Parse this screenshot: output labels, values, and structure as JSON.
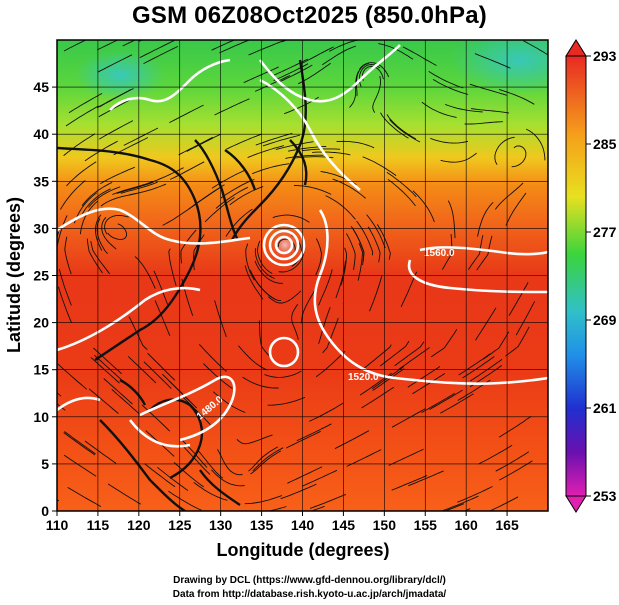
{
  "title": "GSM 06Z08Oct2025 (850.0hPa)",
  "xlabel": "Longitude (degrees)",
  "ylabel": "Latitude  (degrees)",
  "x_ticks": [
    "110",
    "115",
    "120",
    "125",
    "130",
    "135",
    "140",
    "145",
    "150",
    "155",
    "160",
    "165"
  ],
  "y_ticks": [
    "0",
    "5",
    "10",
    "15",
    "20",
    "25",
    "30",
    "35",
    "40",
    "45"
  ],
  "x_range": [
    110,
    170
  ],
  "y_range": [
    0,
    50
  ],
  "colorbar": {
    "labels": [
      "293",
      "285",
      "277",
      "269",
      "261",
      "253"
    ],
    "range": [
      253,
      293
    ]
  },
  "contour_labels": [
    "1560.0",
    "1520.0",
    "1480.0"
  ],
  "footer_line1": "Drawing by DCL (https://www.gfd-dennou.org/library/dcl/)",
  "footer_line2": "Data from http://database.rish.kyoto-u.ac.jp/arch/jmadata/",
  "chart_data": {
    "type": "heatmap",
    "title": "GSM 06Z08Oct2025 (850.0hPa)",
    "xlabel": "Longitude (degrees)",
    "ylabel": "Latitude  (degrees)",
    "xlim": [
      110,
      170
    ],
    "ylim": [
      0,
      50
    ],
    "colorbar_range": [
      253,
      293
    ],
    "grid": true,
    "temperature_by_latitude": [
      {
        "lat": 0,
        "value": 290
      },
      {
        "lat": 10,
        "value": 289
      },
      {
        "lat": 20,
        "value": 290
      },
      {
        "lat": 25,
        "value": 290
      },
      {
        "lat": 30,
        "value": 288
      },
      {
        "lat": 35,
        "value": 284
      },
      {
        "lat": 40,
        "value": 279
      },
      {
        "lat": 45,
        "value": 276
      },
      {
        "lat": 50,
        "value": 273
      }
    ]
  }
}
